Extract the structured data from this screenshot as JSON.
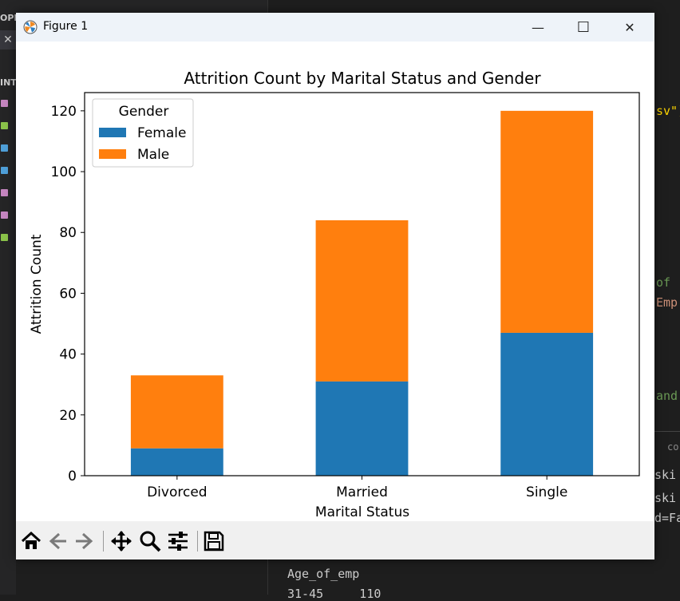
{
  "window": {
    "title": "Figure 1",
    "minimize_glyph": "—",
    "maximize_glyph": "☐",
    "close_glyph": "✕"
  },
  "toolbar": {
    "buttons": [
      {
        "name": "home",
        "icon": "home-icon"
      },
      {
        "name": "back",
        "icon": "arrow-left-icon"
      },
      {
        "name": "forward",
        "icon": "arrow-right-icon"
      },
      {
        "name": "pan",
        "icon": "move-icon"
      },
      {
        "name": "zoom",
        "icon": "zoom-icon"
      },
      {
        "name": "subplots",
        "icon": "sliders-icon"
      },
      {
        "name": "save",
        "icon": "save-icon"
      }
    ]
  },
  "ide": {
    "tab_close": "✕",
    "section_top": "OPE",
    "section_int": "INT",
    "code_right": [
      "sv\")",
      "of",
      "Emp",
      "and",
      "co",
      "ski",
      "ski",
      "d=Fa"
    ],
    "terminal": [
      "Age_of_emp",
      "31-45     110"
    ],
    "colors": {
      "yellow": "#ce9178",
      "orange": "#d7ba7d",
      "green": "#6a9955"
    }
  },
  "chart_data": {
    "type": "bar",
    "stacked": true,
    "title": "Attrition Count by Marital Status and Gender",
    "xlabel": "Marital Status",
    "ylabel": "Attrition Count",
    "categories": [
      "Divorced",
      "Married",
      "Single"
    ],
    "series": [
      {
        "name": "Female",
        "values": [
          9,
          31,
          47
        ],
        "color": "#1f77b4"
      },
      {
        "name": "Male",
        "values": [
          24,
          53,
          73
        ],
        "color": "#ff7f0e"
      }
    ],
    "ylim": [
      0,
      126
    ],
    "yticks": [
      0,
      20,
      40,
      60,
      80,
      100,
      120
    ],
    "legend": {
      "title": "Gender",
      "placement": "upper-left"
    },
    "grid": false
  }
}
